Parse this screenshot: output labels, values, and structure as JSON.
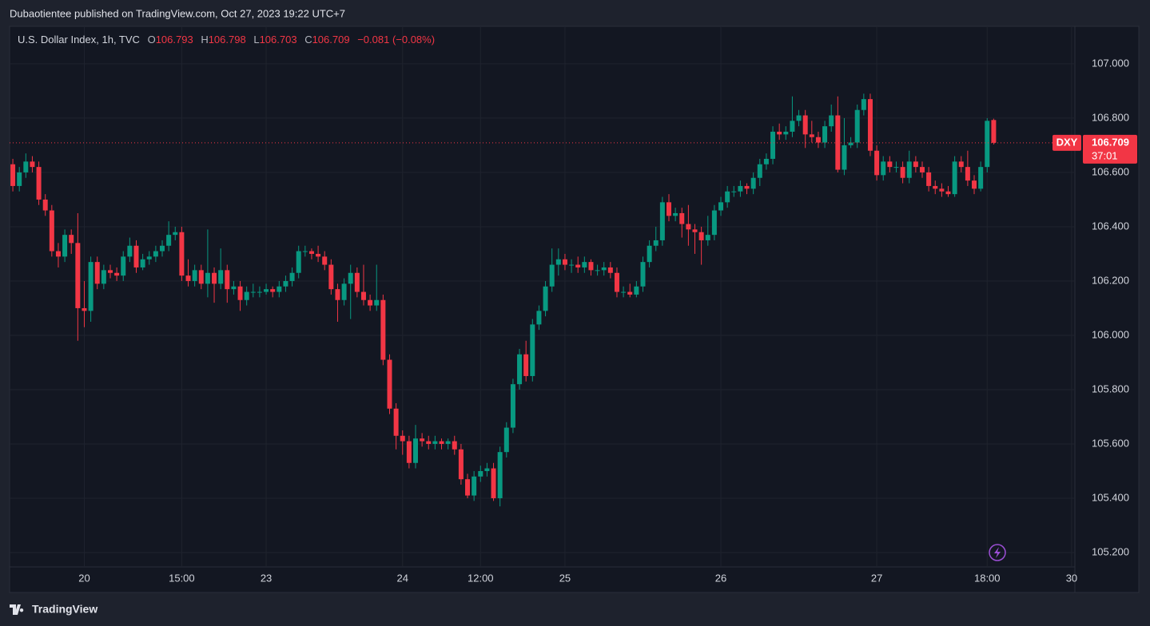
{
  "header": {
    "publisher": "Dubaotientee published on TradingView.com, Oct 27, 2023 19:22 UTC+7"
  },
  "footer": {
    "brand": "TradingView"
  },
  "chart_data": {
    "type": "candlestick",
    "symbol_title": "U.S. Dollar Index, 1h, TVC",
    "legend_labels": {
      "open": "O",
      "high": "H",
      "low": "L",
      "close": "C"
    },
    "change": "−0.081 (−0.08%)",
    "symbol": "DXY",
    "countdown": "37:01",
    "up_color": "#089981",
    "down_color": "#f23645",
    "grid": true,
    "ylim": [
      105.147,
      107.138
    ],
    "yticks": [
      {
        "value": 105.2,
        "label": "105.200"
      },
      {
        "value": 105.4,
        "label": "105.400"
      },
      {
        "value": 105.6,
        "label": "105.600"
      },
      {
        "value": 105.8,
        "label": "105.800"
      },
      {
        "value": 106.0,
        "label": "106.000"
      },
      {
        "value": 106.2,
        "label": "106.200"
      },
      {
        "value": 106.4,
        "label": "106.400"
      },
      {
        "value": 106.6,
        "label": "106.600"
      },
      {
        "value": 106.8,
        "label": "106.800"
      },
      {
        "value": 107.0,
        "label": "107.000"
      }
    ],
    "categories": [
      null,
      null,
      null,
      null,
      null,
      null,
      null,
      null,
      null,
      null,
      null,
      "20",
      null,
      null,
      null,
      null,
      null,
      null,
      null,
      null,
      null,
      null,
      null,
      null,
      null,
      null,
      "15:00",
      null,
      null,
      null,
      null,
      null,
      null,
      null,
      null,
      null,
      null,
      null,
      null,
      "23",
      null,
      null,
      null,
      null,
      null,
      null,
      null,
      null,
      null,
      null,
      null,
      null,
      null,
      null,
      null,
      null,
      null,
      null,
      null,
      null,
      "24",
      null,
      null,
      null,
      null,
      null,
      null,
      null,
      null,
      null,
      null,
      null,
      "12:00",
      null,
      null,
      null,
      null,
      null,
      null,
      null,
      null,
      null,
      null,
      null,
      null,
      "25",
      null,
      null,
      null,
      null,
      null,
      null,
      null,
      null,
      null,
      null,
      null,
      null,
      null,
      null,
      null,
      null,
      null,
      null,
      null,
      null,
      null,
      null,
      null,
      "26",
      null,
      null,
      null,
      null,
      null,
      null,
      null,
      null,
      null,
      null,
      null,
      null,
      null,
      null,
      null,
      null,
      null,
      null,
      null,
      null,
      null,
      null,
      null,
      "27",
      null,
      null,
      null,
      null,
      null,
      null,
      null,
      null,
      null,
      null,
      null,
      null,
      null,
      null,
      null,
      null,
      "18:00",
      null,
      null,
      null,
      null,
      null,
      null,
      null,
      null,
      null,
      null,
      null,
      null,
      "30"
    ],
    "open": [
      106.63,
      106.55,
      106.6,
      106.64,
      106.62,
      106.5,
      106.46,
      106.31,
      106.29,
      106.37,
      106.34,
      106.1,
      106.09,
      106.27,
      106.19,
      106.24,
      106.23,
      106.22,
      106.29,
      106.33,
      106.25,
      106.28,
      106.29,
      106.31,
      106.33,
      106.37,
      106.38,
      106.22,
      106.2,
      106.24,
      106.19,
      106.23,
      106.19,
      106.24,
      106.17,
      106.18,
      106.13,
      106.16,
      106.16,
      106.16,
      106.17,
      106.16,
      106.18,
      106.2,
      106.23,
      106.31,
      106.31,
      106.3,
      106.29,
      106.26,
      106.17,
      106.13,
      106.19,
      106.23,
      106.16,
      106.13,
      106.11,
      106.13,
      105.91,
      105.73,
      105.63,
      105.61,
      105.53,
      105.62,
      105.61,
      105.6,
      105.61,
      105.6,
      105.61,
      105.58,
      105.47,
      105.41,
      105.48,
      105.5,
      105.51,
      105.4,
      105.57,
      105.66,
      105.82,
      105.93,
      105.85,
      106.04,
      106.09,
      106.18,
      106.26,
      106.28,
      106.26,
      106.26,
      106.25,
      106.27,
      106.24,
      106.24,
      106.25,
      106.23,
      106.16,
      106.16,
      106.15,
      106.18,
      106.27,
      106.33,
      106.35,
      106.49,
      106.44,
      106.45,
      106.41,
      106.39,
      106.38,
      106.35,
      106.37,
      106.46,
      106.49,
      106.53,
      106.53,
      106.55,
      106.54,
      106.58,
      106.63,
      106.65,
      106.75,
      106.74,
      106.75,
      106.79,
      106.81,
      106.74,
      106.73,
      106.71,
      106.77,
      106.81,
      106.61,
      106.7,
      106.71,
      106.83,
      106.87,
      106.68,
      106.59,
      106.64,
      106.62,
      106.62,
      106.58,
      106.64,
      106.62,
      106.6,
      106.55,
      106.54,
      106.53,
      106.52,
      106.64,
      106.62,
      106.57,
      106.54,
      106.62,
      106.793,
      null,
      null,
      null,
      null,
      null,
      null,
      null,
      null,
      null,
      null,
      null,
      null
    ],
    "high": [
      106.65,
      106.62,
      106.67,
      106.66,
      106.64,
      106.52,
      106.48,
      106.34,
      106.39,
      106.39,
      106.45,
      106.2,
      106.29,
      106.29,
      106.26,
      106.26,
      106.25,
      106.31,
      106.36,
      106.35,
      106.3,
      106.31,
      106.33,
      106.35,
      106.42,
      106.4,
      106.4,
      106.28,
      106.26,
      106.26,
      106.39,
      106.25,
      106.32,
      106.26,
      106.2,
      106.2,
      106.18,
      106.19,
      106.18,
      106.19,
      106.18,
      106.2,
      106.22,
      106.25,
      106.33,
      106.33,
      106.32,
      106.33,
      106.31,
      106.28,
      106.19,
      106.21,
      106.26,
      106.25,
      106.26,
      106.15,
      106.26,
      106.15,
      105.93,
      105.75,
      105.65,
      105.63,
      105.67,
      105.64,
      105.63,
      105.63,
      105.62,
      105.62,
      105.63,
      105.6,
      105.49,
      105.5,
      105.52,
      105.53,
      105.53,
      105.59,
      105.68,
      105.84,
      105.95,
      105.98,
      106.06,
      106.11,
      106.2,
      106.32,
      106.32,
      106.3,
      106.28,
      106.29,
      106.29,
      106.28,
      106.26,
      106.27,
      106.27,
      106.25,
      106.18,
      106.19,
      106.2,
      106.29,
      106.35,
      106.4,
      106.51,
      106.52,
      106.47,
      106.47,
      106.48,
      106.41,
      106.4,
      106.44,
      106.48,
      106.51,
      106.55,
      106.55,
      106.57,
      106.56,
      106.6,
      106.65,
      106.67,
      106.77,
      106.78,
      106.77,
      106.88,
      106.83,
      106.83,
      106.79,
      106.75,
      106.79,
      106.85,
      106.88,
      106.8,
      106.73,
      106.85,
      106.89,
      106.89,
      106.7,
      106.66,
      106.66,
      106.64,
      106.64,
      106.68,
      106.66,
      106.64,
      106.62,
      106.57,
      106.56,
      106.55,
      106.66,
      106.66,
      106.68,
      106.59,
      106.64,
      106.8,
      106.798,
      null,
      null,
      null,
      null,
      null,
      null,
      null,
      null,
      null,
      null,
      null,
      null
    ],
    "low": [
      106.53,
      106.53,
      106.58,
      106.6,
      106.48,
      106.44,
      106.29,
      106.25,
      106.27,
      106.3,
      105.98,
      106.03,
      106.05,
      106.17,
      106.17,
      106.21,
      106.2,
      106.2,
      106.27,
      106.23,
      106.24,
      106.26,
      106.27,
      106.29,
      106.31,
      106.35,
      106.2,
      106.18,
      106.18,
      106.17,
      106.14,
      106.12,
      106.17,
      106.12,
      106.15,
      106.09,
      106.11,
      106.14,
      106.14,
      106.15,
      106.14,
      106.14,
      106.16,
      106.18,
      106.21,
      106.29,
      106.28,
      106.27,
      106.24,
      106.15,
      106.05,
      106.11,
      106.06,
      106.14,
      106.11,
      106.09,
      106.09,
      105.89,
      105.71,
      105.58,
      105.56,
      105.51,
      105.51,
      105.59,
      105.58,
      105.58,
      105.58,
      105.58,
      105.56,
      105.45,
      105.4,
      105.39,
      105.46,
      105.48,
      105.39,
      105.37,
      105.55,
      105.64,
      105.8,
      105.83,
      105.83,
      106.02,
      106.07,
      106.16,
      106.22,
      106.24,
      106.23,
      106.23,
      106.23,
      106.22,
      106.22,
      106.22,
      106.21,
      106.14,
      106.14,
      106.14,
      106.14,
      106.16,
      106.25,
      106.31,
      106.33,
      106.42,
      106.42,
      106.36,
      106.33,
      106.3,
      106.26,
      106.33,
      106.35,
      106.44,
      106.47,
      106.51,
      106.51,
      106.52,
      106.52,
      106.55,
      106.61,
      106.63,
      106.72,
      106.72,
      106.73,
      106.77,
      106.69,
      106.71,
      106.69,
      106.69,
      106.75,
      106.6,
      106.59,
      106.69,
      106.69,
      106.81,
      106.66,
      106.57,
      106.57,
      106.6,
      106.6,
      106.56,
      106.56,
      106.6,
      106.58,
      106.53,
      106.52,
      106.51,
      106.51,
      106.51,
      106.6,
      106.55,
      106.52,
      106.53,
      106.6,
      106.703,
      null,
      null,
      null,
      null,
      null,
      null,
      null,
      null,
      null,
      null,
      null,
      null
    ],
    "close": [
      106.55,
      106.6,
      106.64,
      106.62,
      106.5,
      106.46,
      106.31,
      106.29,
      106.37,
      106.34,
      106.1,
      106.09,
      106.27,
      106.19,
      106.24,
      106.23,
      106.22,
      106.29,
      106.33,
      106.25,
      106.28,
      106.29,
      106.31,
      106.33,
      106.37,
      106.38,
      106.22,
      106.2,
      106.24,
      106.19,
      106.23,
      106.19,
      106.24,
      106.17,
      106.18,
      106.13,
      106.16,
      106.16,
      106.16,
      106.17,
      106.16,
      106.18,
      106.2,
      106.23,
      106.31,
      106.31,
      106.3,
      106.29,
      106.26,
      106.17,
      106.13,
      106.19,
      106.23,
      106.16,
      106.13,
      106.11,
      106.13,
      105.91,
      105.73,
      105.63,
      105.61,
      105.53,
      105.62,
      105.61,
      105.6,
      105.61,
      105.6,
      105.61,
      105.58,
      105.47,
      105.41,
      105.48,
      105.5,
      105.51,
      105.4,
      105.57,
      105.66,
      105.82,
      105.93,
      105.85,
      106.04,
      106.09,
      106.18,
      106.26,
      106.28,
      106.26,
      106.26,
      106.25,
      106.27,
      106.24,
      106.24,
      106.25,
      106.23,
      106.16,
      106.16,
      106.15,
      106.18,
      106.27,
      106.33,
      106.35,
      106.49,
      106.44,
      106.45,
      106.41,
      106.39,
      106.38,
      106.35,
      106.37,
      106.46,
      106.49,
      106.53,
      106.53,
      106.55,
      106.54,
      106.58,
      106.63,
      106.65,
      106.75,
      106.74,
      106.75,
      106.79,
      106.81,
      106.74,
      106.73,
      106.71,
      106.77,
      106.81,
      106.61,
      106.7,
      106.71,
      106.83,
      106.87,
      106.68,
      106.59,
      106.64,
      106.62,
      106.62,
      106.58,
      106.64,
      106.62,
      106.6,
      106.55,
      106.54,
      106.53,
      106.52,
      106.64,
      106.62,
      106.57,
      106.54,
      106.62,
      106.79,
      106.709,
      null,
      null,
      null,
      null,
      null,
      null,
      null,
      null,
      null,
      null,
      null,
      null
    ]
  }
}
